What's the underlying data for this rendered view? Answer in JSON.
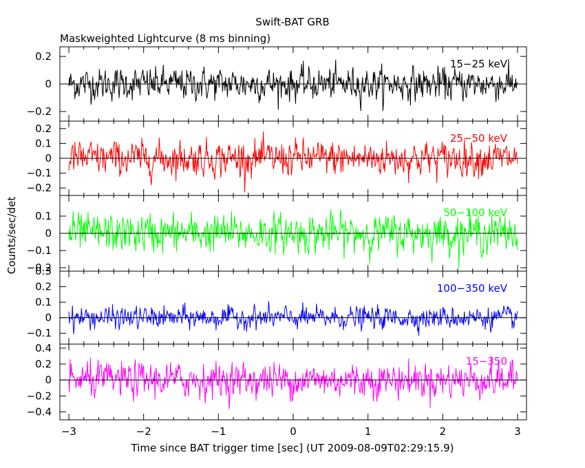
{
  "figure": {
    "title": "Swift-BAT GRB",
    "subtitle": "Maskweighted Lightcurve (8 ms binning)",
    "ylabel": "Counts/sec/det",
    "xlabel": "Time since BAT trigger time [sec] (UT 2009-08-09T02:29:15.9)"
  },
  "chart_data": {
    "type": "line",
    "x_range": [
      -3,
      3
    ],
    "bin_width_s": 0.008,
    "x_ticks": [
      -3,
      -2,
      -1,
      0,
      1,
      2,
      3
    ],
    "x_tick_labels": [
      "−3",
      "−2",
      "−1",
      "0",
      "1",
      "2",
      "3"
    ],
    "panels": [
      {
        "name": "15−25 keV",
        "color": "#000000",
        "ylim": [
          -0.27,
          0.27
        ],
        "y_ticks": [
          -0.2,
          0,
          0.2
        ],
        "y_tick_labels": [
          "−0.2",
          "0",
          "0.2"
        ],
        "noise_sigma": 0.075,
        "series_mean": 0.0
      },
      {
        "name": "25−50 keV",
        "color": "#ff0000",
        "ylim": [
          -0.25,
          0.25
        ],
        "y_ticks": [
          -0.2,
          -0.1,
          0,
          0.1,
          0.2
        ],
        "y_tick_labels": [
          "−0.2",
          "−0.1",
          "0",
          "0.1",
          "0.2"
        ],
        "noise_sigma": 0.075,
        "series_mean": 0.0
      },
      {
        "name": "50−100 keV",
        "color": "#00ff00",
        "ylim": [
          -0.22,
          0.22
        ],
        "y_ticks": [
          -0.2,
          -0.1,
          0,
          0.1
        ],
        "y_tick_labels": [
          "−0.2",
          "−0.1",
          "0",
          "0.1"
        ],
        "noise_sigma": 0.07,
        "series_mean": 0.0
      },
      {
        "name": "100−350 keV",
        "color": "#0000ff",
        "ylim": [
          -0.17,
          0.3
        ],
        "y_ticks": [
          -0.1,
          0,
          0.1,
          0.2,
          0.3
        ],
        "y_tick_labels": [
          "−0.1",
          "0",
          "0.1",
          "0.2",
          "0.3"
        ],
        "noise_sigma": 0.045,
        "series_mean": 0.0
      },
      {
        "name": "15−350",
        "color": "#ff00ff",
        "ylim": [
          -0.5,
          0.45
        ],
        "y_ticks": [
          -0.4,
          -0.2,
          0,
          0.2,
          0.4
        ],
        "y_tick_labels": [
          "−0.4",
          "−0.2",
          "0",
          "0.2",
          "0.4"
        ],
        "noise_sigma": 0.14,
        "series_mean": 0.0
      }
    ]
  }
}
